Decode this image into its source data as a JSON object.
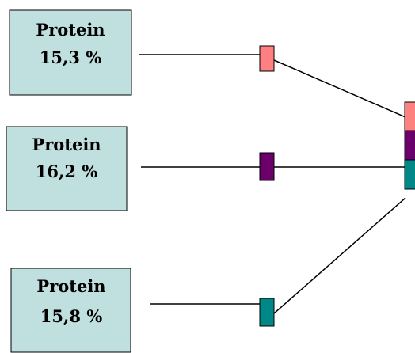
{
  "sources": [
    {
      "label": "Protein",
      "value": "15,3 %"
    },
    {
      "label": "Protein",
      "value": "16,2 %"
    },
    {
      "label": "Protein",
      "value": "15,8 %"
    }
  ],
  "colors": {
    "box_fill": "#c0e0e0",
    "box_stroke": "#000000",
    "line": "#000000",
    "marker_pink": "#ff8080",
    "marker_purple": "#6b006b",
    "marker_teal": "#008888"
  }
}
